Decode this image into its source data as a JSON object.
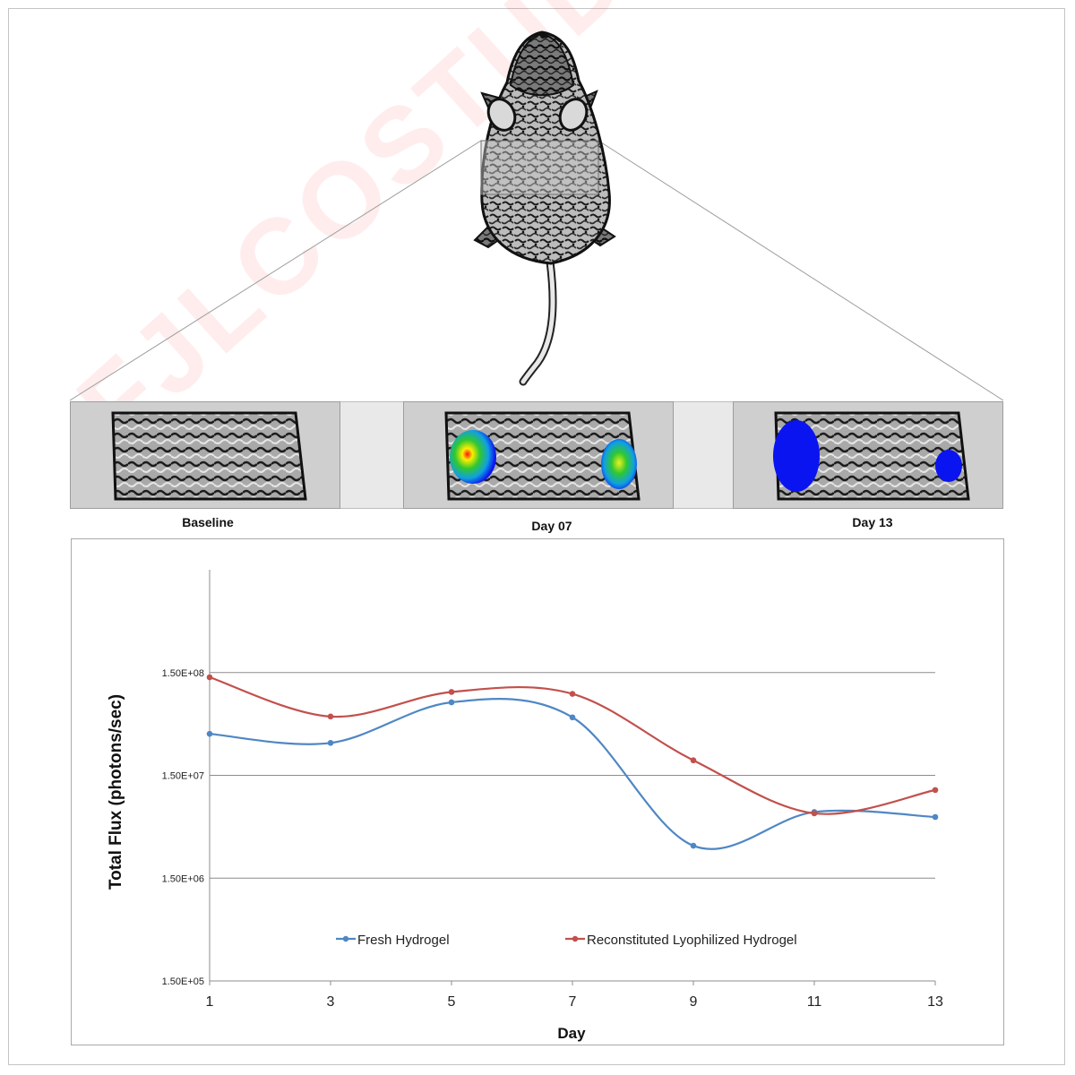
{
  "figure": {
    "panels": [
      {
        "label": "Baseline"
      },
      {
        "label": "Day 07"
      },
      {
        "label": "Day 13"
      }
    ],
    "watermark_text": "FJLCOSTUDIO.COM",
    "colors": {
      "fresh": "#4f87c4",
      "reconstituted": "#c2504c",
      "grid": "#8c8c8c",
      "axis": "#8c8c8c",
      "signal_blue": "#0a14f0"
    }
  },
  "chart_data": {
    "type": "line",
    "xlabel": "Day",
    "ylabel": "Total Flux (photons/sec)",
    "y_scale": "log",
    "ylim": [
      150000,
      1500000000
    ],
    "y_ticks": [
      "1.50E+05",
      "1.50E+06",
      "1.50E+07",
      "1.50E+08"
    ],
    "y_tick_values": [
      150000,
      1500000,
      15000000,
      150000000
    ],
    "x_ticks": [
      "1",
      "3",
      "5",
      "7",
      "9",
      "11",
      "13"
    ],
    "x": [
      1,
      3,
      5,
      7,
      9,
      11,
      13
    ],
    "xlim": [
      1,
      13
    ],
    "grid": "horizontal",
    "legend_position": "bottom-inside",
    "series": [
      {
        "name": "Fresh Hydrogel",
        "color": "#4f87c4",
        "values": [
          38000000,
          31000000,
          77000000,
          55000000,
          3100000,
          6600000,
          5900000
        ]
      },
      {
        "name": "Reconstituted Lyophilized Hydrogel",
        "color": "#c2504c",
        "values": [
          135000000,
          56000000,
          97000000,
          93000000,
          21000000,
          6400000,
          10800000
        ]
      }
    ]
  }
}
